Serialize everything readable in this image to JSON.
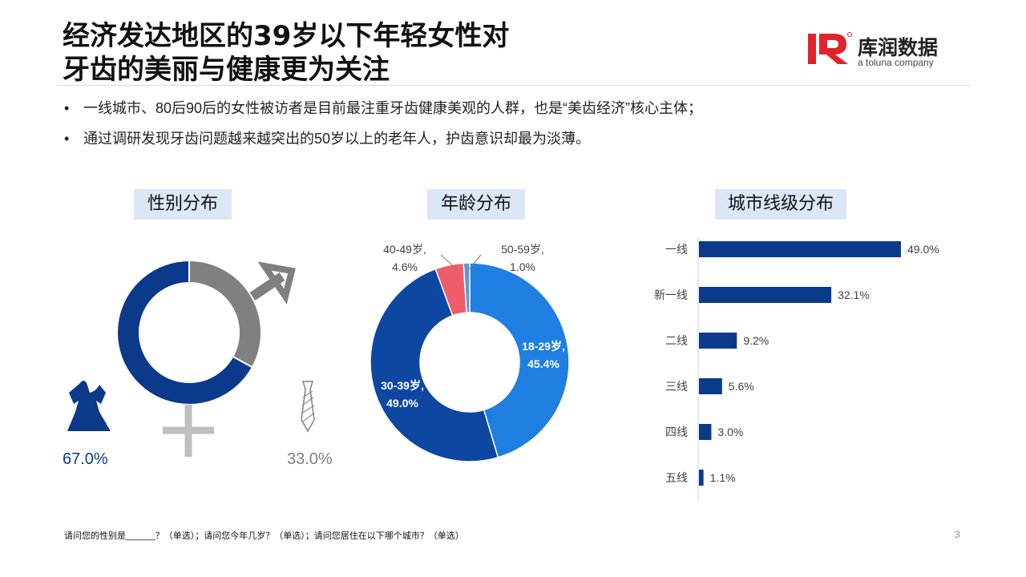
{
  "title": {
    "line1": "经济发达地区的39岁以下年轻女性对",
    "line2": "牙齿的美丽与健康更为关注"
  },
  "logo": {
    "name": "库润数据",
    "sub": "a toluna company"
  },
  "bullets": [
    "一线城市、80后90后的女性被访者是目前最注重牙齿健康美观的人群，也是“美齿经济”核心主体；",
    "通过调研发现牙齿问题越来越突出的50岁以上的老年人，护齿意识却最为淡薄。"
  ],
  "bullet_symbol": "•",
  "labels": {
    "gender": "性别分布",
    "age": "年龄分布",
    "city": "城市线级分布"
  },
  "colors": {
    "navy": "#0c3a8a",
    "gray": "#808080",
    "age_18_29": "#1f7fe0",
    "age_30_39": "#0d47a1",
    "age_40_49": "#f05d6a",
    "age_50_59": "#5b9bd5",
    "bar": "#0c3a8a"
  },
  "chart_data": [
    {
      "type": "pie",
      "title": "性别分布",
      "series": [
        {
          "label": "67.0%",
          "value": 67.0,
          "icon": "dress-icon",
          "color": "#0c3a8a"
        },
        {
          "label": "33.0%",
          "value": 33.0,
          "icon": "tie-icon",
          "color": "#808080"
        }
      ]
    },
    {
      "type": "pie",
      "title": "年龄分布",
      "slices": [
        {
          "name": "18-29岁",
          "value": 45.4,
          "label_line1": "18-29岁,",
          "label_line2": "45.4%",
          "color": "#1f7fe0"
        },
        {
          "name": "30-39岁",
          "value": 49.0,
          "label_line1": "30-39岁,",
          "label_line2": "49.0%",
          "color": "#0d47a1"
        },
        {
          "name": "40-49岁",
          "value": 4.6,
          "label_line1": "40-49岁,",
          "label_line2": "4.6%",
          "color": "#f05d6a"
        },
        {
          "name": "50-59岁",
          "value": 1.0,
          "label_line1": "50-59岁,",
          "label_line2": "1.0%",
          "color": "#5b9bd5"
        }
      ]
    },
    {
      "type": "bar",
      "title": "城市线级分布",
      "orientation": "horizontal",
      "categories": [
        "一线",
        "新一线",
        "二线",
        "三线",
        "四线",
        "五线"
      ],
      "values": [
        49.0,
        32.1,
        9.2,
        5.6,
        3.0,
        1.1
      ],
      "value_labels": [
        "49.0%",
        "32.1%",
        "9.2%",
        "5.6%",
        "3.0%",
        "1.1%"
      ],
      "xlim": [
        0,
        49.0
      ]
    }
  ],
  "footnote": "请问您的性别是______？（单选）；请问您今年几岁？（单选）；请问您居住在以下哪个城市？（单选）",
  "page_number": "3"
}
